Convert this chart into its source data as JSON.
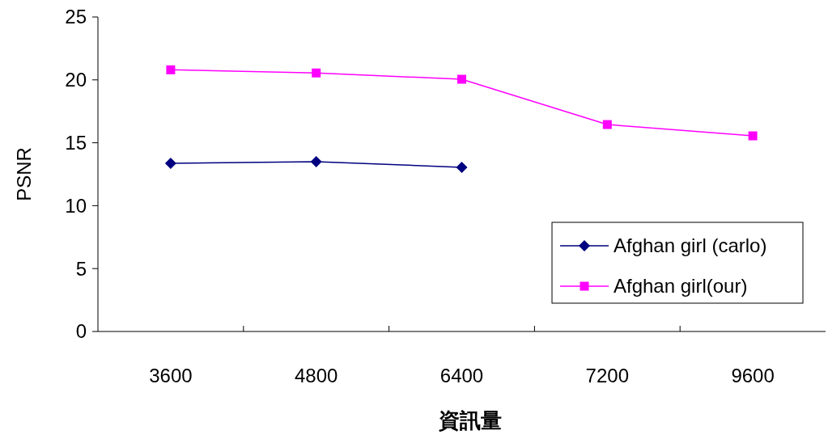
{
  "chart_data": {
    "type": "line",
    "xlabel": "資訊量",
    "ylabel": "PSNR",
    "categories": [
      "3600",
      "4800",
      "6400",
      "7200",
      "9600"
    ],
    "ylim": [
      0,
      25
    ],
    "yticks": [
      0,
      5,
      10,
      15,
      20,
      25
    ],
    "grid": false,
    "legend": "bottom right",
    "series": [
      {
        "name": "Afghan girl (carlo)",
        "color": "#000080",
        "marker": "diamond",
        "values": [
          13.37,
          13.5,
          13.05,
          null,
          null
        ]
      },
      {
        "name": "Afghan girl(our)",
        "color": "#ff00ff",
        "marker": "square",
        "values": [
          20.8,
          20.55,
          20.05,
          16.45,
          15.55
        ]
      }
    ]
  }
}
